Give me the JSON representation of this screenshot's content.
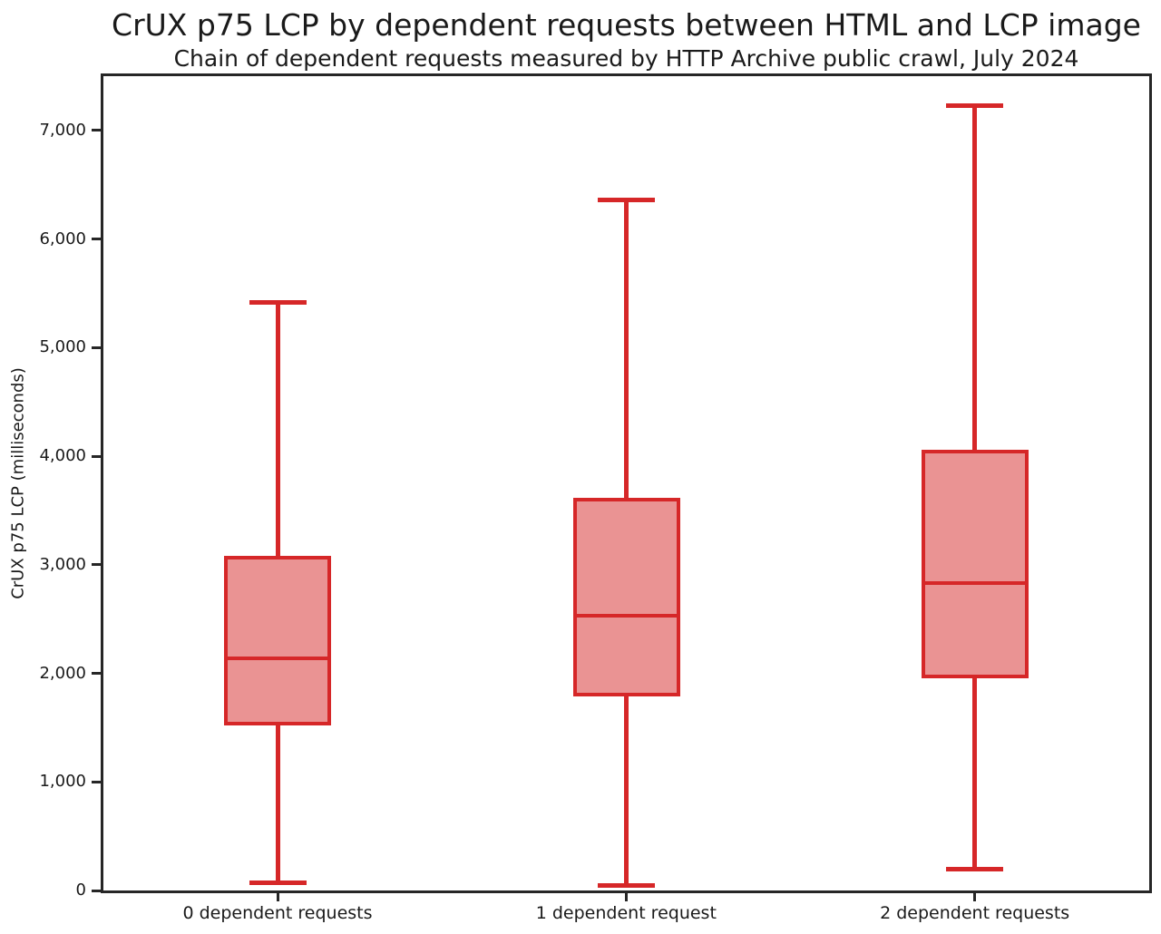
{
  "chart_data": {
    "type": "boxplot",
    "title": "CrUX p75 LCP by dependent requests between HTML and LCP image",
    "subtitle": "Chain of dependent requests measured by HTTP Archive public crawl, July 2024",
    "ylabel": "CrUX p75 LCP (milliseconds)",
    "xlabel": "",
    "ylim": [
      0,
      7500
    ],
    "grid": false,
    "legend": null,
    "show_fliers": false,
    "yticks": [
      {
        "value": 0,
        "label": "0"
      },
      {
        "value": 1000,
        "label": "1,000"
      },
      {
        "value": 2000,
        "label": "2,000"
      },
      {
        "value": 3000,
        "label": "3,000"
      },
      {
        "value": 4000,
        "label": "4,000"
      },
      {
        "value": 5000,
        "label": "5,000"
      },
      {
        "value": 6000,
        "label": "6,000"
      },
      {
        "value": 7000,
        "label": "7,000"
      }
    ],
    "categories": [
      "0 dependent requests",
      "1 dependent request",
      "2 dependent requests"
    ],
    "series": [
      {
        "category": "0 dependent requests",
        "whisker_min": 75,
        "q1": 1520,
        "median": 2140,
        "q3": 3080,
        "whisker_max": 5420
      },
      {
        "category": "1 dependent request",
        "whisker_min": 50,
        "q1": 1790,
        "median": 2530,
        "q3": 3620,
        "whisker_max": 6360
      },
      {
        "category": "2 dependent requests",
        "whisker_min": 200,
        "q1": 1955,
        "median": 2830,
        "q3": 4060,
        "whisker_max": 7230
      }
    ],
    "colors": {
      "line": "#d62728",
      "box_fill": "#ea9393",
      "spine": "#262626",
      "text": "#1a1a1a",
      "background": "#ffffff"
    }
  }
}
